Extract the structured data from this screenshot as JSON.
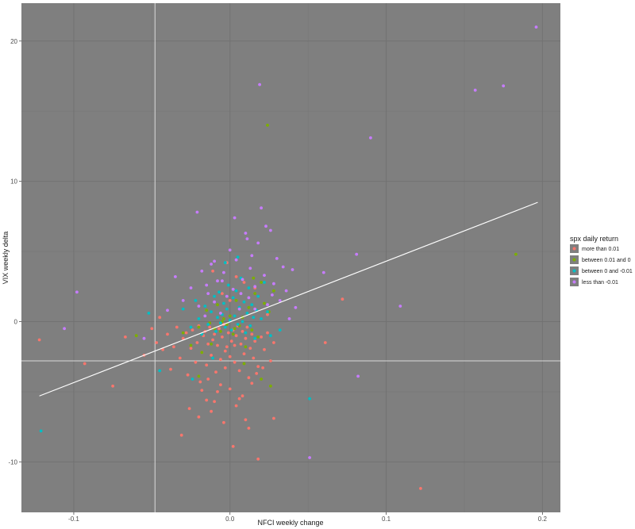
{
  "chart_data": {
    "type": "scatter",
    "xlabel": "NFCI weekly change",
    "ylabel": "VIX weekly delta",
    "xlim": [
      -0.1335,
      0.2115
    ],
    "ylim": [
      -13.6,
      22.7
    ],
    "x_ticks": [
      -0.1,
      0.0,
      0.1,
      0.2
    ],
    "x_tick_labels": [
      "-0.1",
      "0.0",
      "0.1",
      "0.2"
    ],
    "y_ticks": [
      -10,
      0,
      10,
      20
    ],
    "y_tick_labels": [
      "-10",
      "0",
      "10",
      "20"
    ],
    "grid": true,
    "panel_background": "#7f7f7f",
    "legend": {
      "title": "spx daily return",
      "position": "right",
      "entries": [
        {
          "label": "more than 0.01",
          "color": "#f8766d"
        },
        {
          "label": "between 0.01 and 0",
          "color": "#7cae00"
        },
        {
          "label": "between 0 and -0.01",
          "color": "#00bfc4"
        },
        {
          "label": "less than -0.01",
          "color": "#c77cff"
        }
      ]
    },
    "reference_lines": [
      {
        "orientation": "vertical",
        "x": -0.048,
        "color": "#d9d9d9"
      },
      {
        "orientation": "horizontal",
        "y": -2.8,
        "color": "#d9d9d9"
      }
    ],
    "regression_line": {
      "x": [
        -0.122,
        0.197
      ],
      "y": [
        -5.3,
        8.5
      ],
      "color": "#ffffff"
    },
    "series": [
      {
        "name": "more than 0.01",
        "color": "#f8766d",
        "x": [
          -0.122,
          -0.093,
          -0.075,
          -0.067,
          -0.055,
          -0.05,
          -0.047,
          -0.045,
          -0.043,
          -0.04,
          -0.038,
          -0.036,
          -0.034,
          -0.032,
          -0.03,
          -0.028,
          -0.027,
          -0.025,
          -0.024,
          -0.022,
          -0.021,
          -0.02,
          -0.019,
          -0.018,
          -0.017,
          -0.016,
          -0.015,
          -0.014,
          -0.013,
          -0.012,
          -0.011,
          -0.01,
          -0.009,
          -0.008,
          -0.007,
          -0.006,
          -0.005,
          -0.004,
          -0.003,
          -0.002,
          -0.001,
          0.0,
          0.001,
          0.002,
          0.003,
          0.004,
          0.005,
          0.006,
          0.007,
          0.008,
          0.009,
          0.01,
          0.011,
          0.012,
          0.013,
          0.014,
          0.015,
          0.016,
          0.018,
          0.02,
          0.022,
          0.024,
          0.026,
          0.028,
          -0.015,
          -0.012,
          -0.008,
          -0.004,
          0.0,
          0.004,
          0.008,
          0.012,
          -0.02,
          -0.01,
          0.002,
          0.01,
          0.018,
          -0.006,
          0.006,
          -0.014,
          0.014,
          0.003,
          -0.003,
          0.017,
          0.021,
          -0.031,
          -0.026,
          -0.018,
          0.0,
          0.016,
          0.072,
          0.061,
          0.122,
          -0.005,
          0.004,
          -0.011,
          0.009,
          0.028,
          0.024,
          -0.002
        ],
        "y": [
          -1.3,
          -3.0,
          -4.6,
          -1.1,
          -2.4,
          -0.5,
          -1.5,
          0.3,
          -2.0,
          -0.9,
          -3.4,
          -1.8,
          -0.4,
          -2.6,
          -1.2,
          -0.8,
          -3.8,
          -1.9,
          -0.6,
          -2.9,
          -1.5,
          -0.3,
          -4.3,
          -2.2,
          -1.0,
          -0.7,
          -3.1,
          -1.6,
          -0.4,
          -2.4,
          -1.3,
          -0.9,
          -3.6,
          -1.7,
          -0.5,
          -2.7,
          -1.1,
          -0.2,
          -3.3,
          -1.8,
          -0.8,
          -2.5,
          -1.4,
          -0.6,
          -2.9,
          -1.0,
          -0.3,
          -3.5,
          -1.6,
          -0.7,
          -2.3,
          -1.2,
          -0.4,
          -4.0,
          -1.9,
          -0.9,
          -2.6,
          -1.4,
          -3.2,
          -1.1,
          -2.0,
          -0.8,
          -2.8,
          -1.5,
          -5.6,
          -6.4,
          -5.0,
          -7.2,
          -4.8,
          -6.0,
          -5.3,
          -7.6,
          -6.8,
          -5.7,
          -8.9,
          -7.0,
          -9.8,
          -4.5,
          -5.5,
          -4.1,
          -4.4,
          -1.7,
          -2.1,
          -3.7,
          -3.3,
          -8.1,
          -6.2,
          -4.9,
          1.5,
          2.4,
          1.6,
          -1.5,
          -11.9,
          2.0,
          3.2,
          3.6,
          2.8,
          -6.9,
          0.5,
          4.2
        ]
      },
      {
        "name": "between 0.01 and 0",
        "color": "#7cae00",
        "x": [
          -0.06,
          -0.03,
          -0.025,
          -0.02,
          -0.018,
          -0.015,
          -0.012,
          -0.01,
          -0.008,
          -0.006,
          -0.004,
          -0.002,
          0.0,
          0.002,
          0.004,
          0.006,
          0.008,
          0.01,
          0.012,
          0.014,
          0.016,
          0.018,
          0.02,
          0.022,
          0.024,
          0.026,
          0.028,
          -0.005,
          0.003,
          0.009,
          -0.013,
          0.015,
          0.025,
          0.183,
          -0.02,
          0.02
        ],
        "y": [
          -1.0,
          -0.8,
          -1.7,
          -0.4,
          -2.2,
          0.8,
          -1.6,
          -0.5,
          1.2,
          -0.7,
          0.2,
          -0.2,
          0.4,
          -0.9,
          1.5,
          -0.3,
          0.3,
          -1.8,
          1.0,
          -0.6,
          2.0,
          -1.1,
          2.8,
          1.3,
          14.0,
          -4.6,
          2.2,
          0.0,
          -0.5,
          -3.0,
          -0.1,
          3.1,
          0.7,
          4.8,
          -3.9,
          -4.1
        ]
      },
      {
        "name": "between 0 and -0.01",
        "color": "#00bfc4",
        "x": [
          -0.121,
          -0.052,
          -0.045,
          -0.03,
          -0.025,
          -0.022,
          -0.02,
          -0.018,
          -0.016,
          -0.014,
          -0.012,
          -0.01,
          -0.009,
          -0.008,
          -0.007,
          -0.006,
          -0.005,
          -0.004,
          -0.003,
          -0.002,
          -0.001,
          0.0,
          0.001,
          0.002,
          0.003,
          0.004,
          0.005,
          0.006,
          0.007,
          0.008,
          0.009,
          0.01,
          0.011,
          0.012,
          0.013,
          0.014,
          0.015,
          0.016,
          0.018,
          0.02,
          0.022,
          0.024,
          0.026,
          -0.011,
          -0.003,
          0.005,
          0.051,
          0.032,
          -0.024,
          0.017
        ],
        "y": [
          -7.8,
          0.6,
          -3.5,
          0.9,
          -0.4,
          1.5,
          0.2,
          -0.9,
          1.1,
          -0.2,
          0.7,
          1.8,
          -0.7,
          0.3,
          2.1,
          -0.1,
          0.5,
          1.3,
          -0.4,
          0.9,
          2.6,
          0.1,
          -0.6,
          1.7,
          0.4,
          2.2,
          -0.2,
          1.0,
          3.1,
          0.0,
          1.4,
          -0.8,
          0.6,
          2.4,
          -0.3,
          1.2,
          0.3,
          -1.2,
          1.8,
          0.2,
          2.8,
          0.7,
          -1.0,
          -2.6,
          4.2,
          4.6,
          -5.5,
          -0.6,
          -4.1,
          0.8
        ]
      },
      {
        "name": "less than -0.01",
        "color": "#c77cff",
        "x": [
          -0.106,
          -0.098,
          -0.055,
          -0.04,
          -0.035,
          -0.03,
          -0.025,
          -0.02,
          -0.018,
          -0.016,
          -0.014,
          -0.012,
          -0.01,
          -0.008,
          -0.006,
          -0.004,
          -0.002,
          0.0,
          0.002,
          0.004,
          0.006,
          0.008,
          0.01,
          0.012,
          0.014,
          0.016,
          0.018,
          0.02,
          0.022,
          0.024,
          0.026,
          0.028,
          0.03,
          0.032,
          0.034,
          0.036,
          0.038,
          0.04,
          0.042,
          0.06,
          0.081,
          0.082,
          0.09,
          0.109,
          0.157,
          0.175,
          0.196,
          0.019,
          0.051,
          -0.021,
          -0.01,
          0.003,
          0.011,
          0.023,
          -0.015,
          0.007,
          0.016,
          -0.005,
          0.013,
          0.027
        ],
        "y": [
          -0.5,
          2.1,
          -1.2,
          0.8,
          3.2,
          1.5,
          2.4,
          1.1,
          3.6,
          0.4,
          2.0,
          4.1,
          1.4,
          2.9,
          0.6,
          3.5,
          1.8,
          5.1,
          2.3,
          4.4,
          0.9,
          3.0,
          6.3,
          1.7,
          4.7,
          2.5,
          5.6,
          8.1,
          3.3,
          1.2,
          6.5,
          2.7,
          4.5,
          1.5,
          3.9,
          2.2,
          0.2,
          3.7,
          1.0,
          3.5,
          4.8,
          -3.9,
          13.1,
          1.1,
          16.5,
          16.8,
          21.0,
          16.9,
          -9.7,
          7.8,
          4.3,
          7.4,
          5.9,
          6.8,
          2.6,
          2.0,
          0.9,
          2.9,
          3.8,
          1.9
        ]
      }
    ]
  }
}
